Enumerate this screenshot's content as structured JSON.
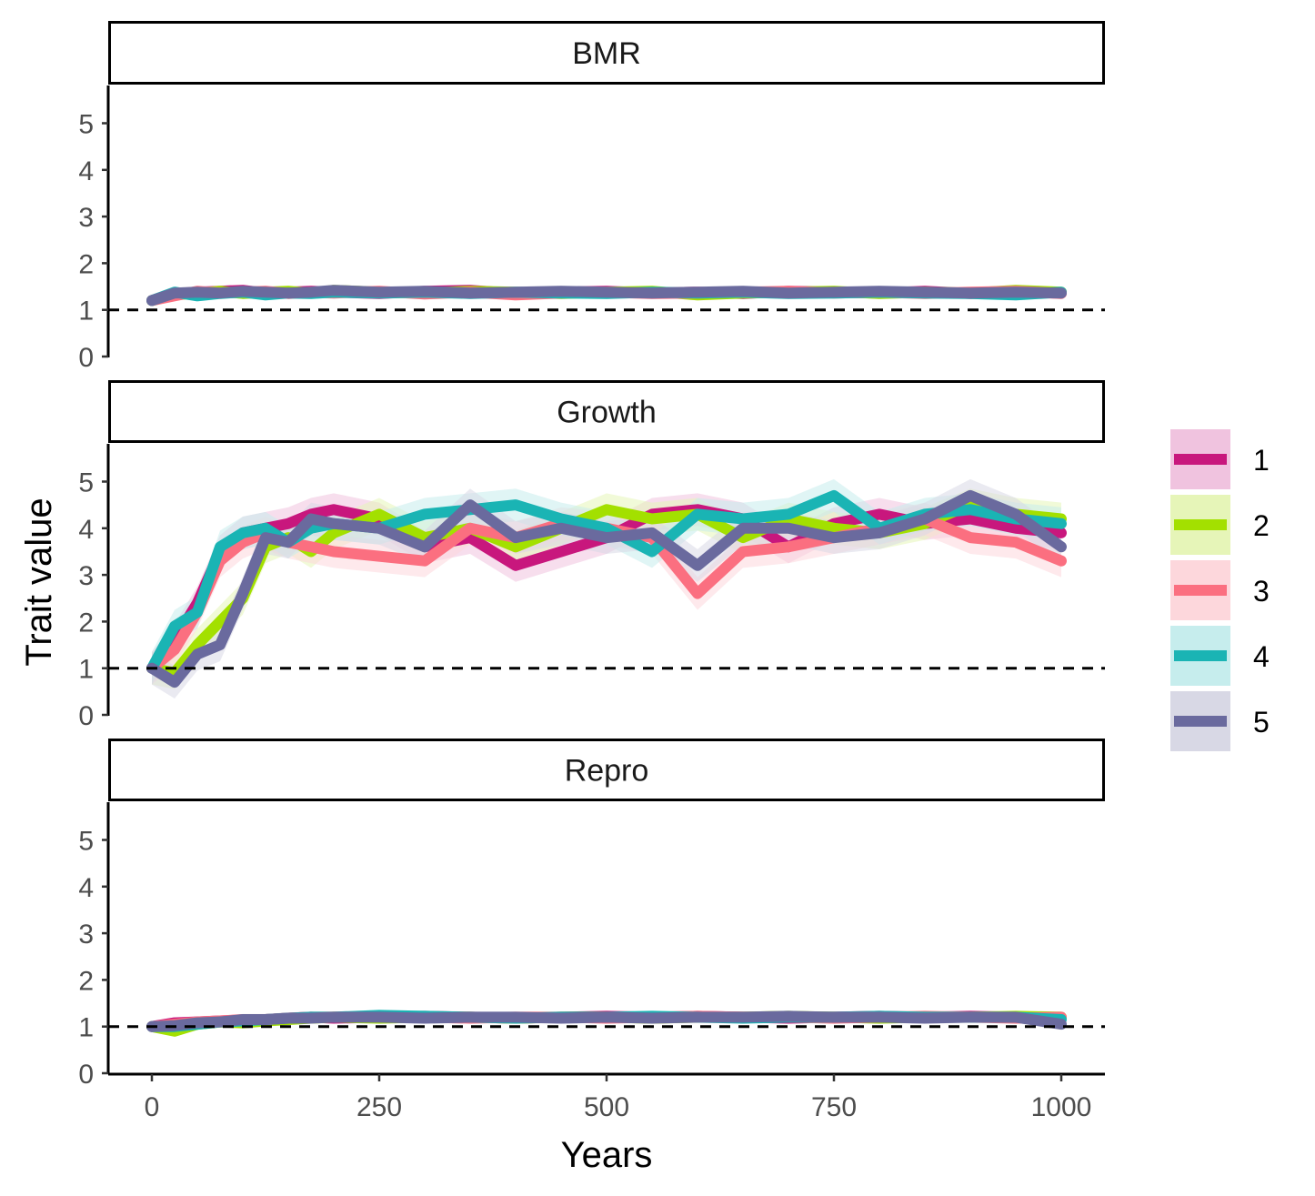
{
  "chart_data": {
    "type": "line",
    "xlabel": "Years",
    "ylabel": "Trait value",
    "xlim": [
      0,
      1000
    ],
    "ylim": [
      0,
      5.5
    ],
    "x_ticks": [
      0,
      250,
      500,
      750,
      1000
    ],
    "y_ticks": [
      0,
      1,
      2,
      3,
      4,
      5
    ],
    "reference_line": {
      "y": 1,
      "style": "dashed"
    },
    "legend": {
      "position": "right"
    },
    "series_names": [
      "1",
      "2",
      "3",
      "4",
      "5"
    ],
    "colors": [
      "#c8177d",
      "#a3e000",
      "#fb6f80",
      "#1ab4b4",
      "#6a6a9e"
    ],
    "band_colors": [
      "#f0c3df",
      "#e6f5b8",
      "#fdd7dc",
      "#c6eded",
      "#d8d8e5"
    ],
    "x": [
      0,
      25,
      50,
      75,
      100,
      125,
      150,
      175,
      200,
      250,
      300,
      350,
      400,
      450,
      500,
      550,
      600,
      650,
      700,
      750,
      800,
      850,
      900,
      950,
      1000
    ],
    "panels": [
      {
        "label": "BMR",
        "series": [
          {
            "name": "1",
            "values": [
              1.2,
              1.35,
              1.38,
              1.4,
              1.42,
              1.36,
              1.38,
              1.4,
              1.38,
              1.35,
              1.4,
              1.42,
              1.35,
              1.38,
              1.4,
              1.36,
              1.38,
              1.35,
              1.4,
              1.38,
              1.36,
              1.4,
              1.35,
              1.38,
              1.36
            ]
          },
          {
            "name": "2",
            "values": [
              1.2,
              1.32,
              1.36,
              1.4,
              1.35,
              1.38,
              1.4,
              1.36,
              1.42,
              1.38,
              1.36,
              1.4,
              1.38,
              1.35,
              1.38,
              1.4,
              1.32,
              1.36,
              1.38,
              1.4,
              1.35,
              1.38,
              1.36,
              1.42,
              1.38
            ]
          },
          {
            "name": "3",
            "values": [
              1.2,
              1.3,
              1.4,
              1.36,
              1.38,
              1.4,
              1.35,
              1.38,
              1.36,
              1.4,
              1.34,
              1.38,
              1.32,
              1.36,
              1.38,
              1.35,
              1.36,
              1.38,
              1.4,
              1.36,
              1.38,
              1.35,
              1.38,
              1.4,
              1.35
            ]
          },
          {
            "name": "4",
            "values": [
              1.2,
              1.38,
              1.3,
              1.35,
              1.38,
              1.32,
              1.36,
              1.35,
              1.38,
              1.36,
              1.38,
              1.35,
              1.38,
              1.36,
              1.35,
              1.38,
              1.36,
              1.38,
              1.35,
              1.36,
              1.38,
              1.36,
              1.35,
              1.32,
              1.38
            ]
          },
          {
            "name": "5",
            "values": [
              1.2,
              1.36,
              1.38,
              1.36,
              1.4,
              1.38,
              1.36,
              1.38,
              1.42,
              1.38,
              1.4,
              1.36,
              1.38,
              1.4,
              1.38,
              1.36,
              1.38,
              1.4,
              1.36,
              1.38,
              1.4,
              1.38,
              1.36,
              1.38,
              1.36
            ]
          }
        ]
      },
      {
        "label": "Growth",
        "series": [
          {
            "name": "1",
            "values": [
              1.0,
              1.6,
              2.4,
              3.5,
              3.9,
              4.0,
              4.1,
              4.3,
              4.4,
              4.2,
              3.6,
              3.8,
              3.2,
              3.5,
              3.8,
              4.3,
              4.4,
              4.2,
              3.6,
              4.1,
              4.3,
              4.1,
              4.2,
              4.0,
              3.9
            ]
          },
          {
            "name": "2",
            "values": [
              1.0,
              0.9,
              1.5,
              2.0,
              2.5,
              3.6,
              3.8,
              3.5,
              3.9,
              4.3,
              3.8,
              4.0,
              3.6,
              4.0,
              4.4,
              4.2,
              4.3,
              3.8,
              4.2,
              4.0,
              3.9,
              4.1,
              4.5,
              4.3,
              4.2
            ]
          },
          {
            "name": "3",
            "values": [
              1.0,
              1.4,
              2.2,
              3.3,
              3.7,
              3.9,
              3.7,
              3.6,
              3.5,
              3.4,
              3.3,
              4.0,
              3.8,
              4.1,
              4.0,
              3.8,
              2.6,
              3.5,
              3.6,
              3.8,
              4.0,
              4.2,
              3.8,
              3.7,
              3.3
            ]
          },
          {
            "name": "4",
            "values": [
              1.0,
              1.9,
              2.2,
              3.6,
              3.9,
              4.0,
              3.7,
              4.0,
              4.1,
              4.0,
              4.3,
              4.4,
              4.5,
              4.2,
              4.0,
              3.5,
              4.3,
              4.2,
              4.3,
              4.7,
              4.0,
              4.3,
              4.4,
              4.2,
              4.1
            ]
          },
          {
            "name": "5",
            "values": [
              1.0,
              0.7,
              1.3,
              1.5,
              2.6,
              3.8,
              3.7,
              4.2,
              4.1,
              4.0,
              3.6,
              4.5,
              3.8,
              4.0,
              3.8,
              3.9,
              3.2,
              4.0,
              4.0,
              3.8,
              3.9,
              4.2,
              4.7,
              4.3,
              3.6
            ]
          }
        ]
      },
      {
        "label": "Repro",
        "series": [
          {
            "name": "1",
            "values": [
              1.0,
              1.08,
              1.1,
              1.12,
              1.14,
              1.15,
              1.18,
              1.2,
              1.18,
              1.2,
              1.22,
              1.2,
              1.18,
              1.2,
              1.22,
              1.2,
              1.22,
              1.2,
              1.18,
              1.2,
              1.22,
              1.2,
              1.22,
              1.2,
              1.18
            ]
          },
          {
            "name": "2",
            "values": [
              1.0,
              0.9,
              1.05,
              1.1,
              1.08,
              1.12,
              1.15,
              1.18,
              1.2,
              1.18,
              1.2,
              1.2,
              1.18,
              1.2,
              1.2,
              1.18,
              1.2,
              1.2,
              1.22,
              1.2,
              1.18,
              1.2,
              1.2,
              1.22,
              1.2
            ]
          },
          {
            "name": "3",
            "values": [
              1.0,
              1.05,
              1.1,
              1.12,
              1.15,
              1.15,
              1.18,
              1.2,
              1.2,
              1.22,
              1.2,
              1.18,
              1.2,
              1.2,
              1.18,
              1.2,
              1.22,
              1.2,
              1.2,
              1.18,
              1.2,
              1.22,
              1.2,
              1.18,
              1.2
            ]
          },
          {
            "name": "4",
            "values": [
              1.0,
              1.0,
              1.05,
              1.1,
              1.12,
              1.15,
              1.18,
              1.2,
              1.2,
              1.24,
              1.22,
              1.2,
              1.18,
              1.2,
              1.2,
              1.22,
              1.2,
              1.18,
              1.2,
              1.2,
              1.22,
              1.2,
              1.2,
              1.2,
              1.15
            ]
          },
          {
            "name": "5",
            "values": [
              1.0,
              1.02,
              1.08,
              1.1,
              1.15,
              1.15,
              1.18,
              1.18,
              1.2,
              1.2,
              1.18,
              1.2,
              1.2,
              1.18,
              1.2,
              1.18,
              1.2,
              1.2,
              1.22,
              1.2,
              1.2,
              1.18,
              1.2,
              1.2,
              1.05
            ]
          }
        ]
      }
    ]
  }
}
